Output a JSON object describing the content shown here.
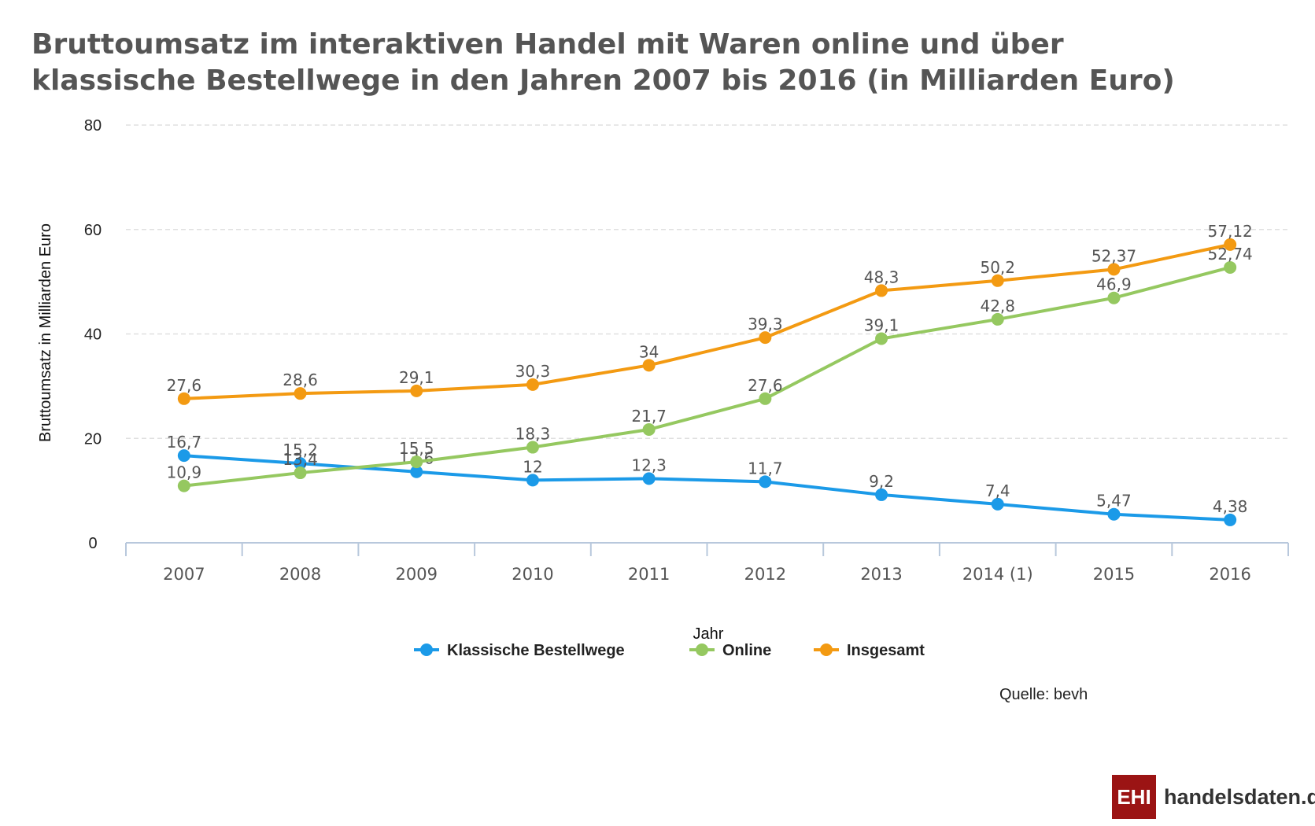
{
  "title_lines": [
    "Bruttoumsatz im interaktiven Handel mit Waren online und über",
    "klassische Bestellwege in den Jahren 2007 bis 2016 (in Milliarden Euro)"
  ],
  "source": "Quelle: bevh",
  "logo": {
    "box": "EHI",
    "text": "handelsdaten.de",
    "color": "#9b1414"
  },
  "colors": {
    "Klassische Bestellwege": "#1b9ae8",
    "Online": "#95c860",
    "Insgesamt": "#f39a12",
    "grid": "#e0e0e0",
    "axis": "#b8c8dc"
  },
  "chart_data": {
    "type": "line",
    "title": "Bruttoumsatz im interaktiven Handel mit Waren online und über klassische Bestellwege in den Jahren 2007 bis 2016 (in Milliarden Euro)",
    "xlabel": "Jahr",
    "ylabel": "Bruttoumsatz in Milliarden Euro",
    "categories": [
      "2007",
      "2008",
      "2009",
      "2010",
      "2011",
      "2012",
      "2013",
      "2014 (1)",
      "2015",
      "2016"
    ],
    "ylim": [
      0,
      80
    ],
    "yticks": [
      0,
      20,
      40,
      60,
      80
    ],
    "grid": true,
    "legend_position": "bottom-center",
    "series": [
      {
        "name": "Klassische Bestellwege",
        "values": [
          16.7,
          15.2,
          13.6,
          12,
          12.3,
          11.7,
          9.2,
          7.4,
          5.47,
          4.38
        ],
        "labels": [
          "16,7",
          "15,2",
          "13,6",
          "12",
          "12,3",
          "11,7",
          "9,2",
          "7,4",
          "5,47",
          "4,38"
        ]
      },
      {
        "name": "Online",
        "values": [
          10.9,
          13.4,
          15.5,
          18.3,
          21.7,
          27.6,
          39.1,
          42.8,
          46.9,
          52.74
        ],
        "labels": [
          "10,9",
          "13,4",
          "15,5",
          "18,3",
          "21,7",
          "27,6",
          "39,1",
          "42,8",
          "46,9",
          "52,74"
        ]
      },
      {
        "name": "Insgesamt",
        "values": [
          27.6,
          28.6,
          29.1,
          30.3,
          34,
          39.3,
          48.3,
          50.2,
          52.37,
          57.12
        ],
        "labels": [
          "27,6",
          "28,6",
          "29,1",
          "30,3",
          "34",
          "39,3",
          "48,3",
          "50,2",
          "52,37",
          "57,12"
        ]
      }
    ]
  }
}
